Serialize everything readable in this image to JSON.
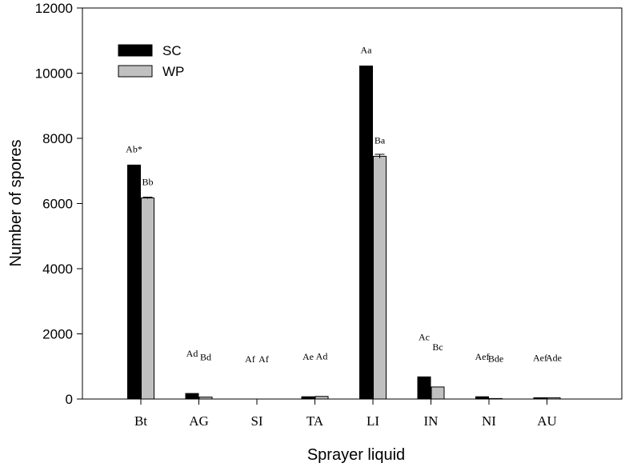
{
  "chart_data": {
    "type": "bar",
    "title": "",
    "xlabel": "Sprayer liquid",
    "ylabel": "Number of spores",
    "ylim": [
      0,
      12000
    ],
    "yticks": [
      0,
      2000,
      4000,
      6000,
      8000,
      10000,
      12000
    ],
    "categories": [
      "Bt",
      "AG",
      "SI",
      "TA",
      "LI",
      "IN",
      "NI",
      "AU"
    ],
    "grid": false,
    "legend_position": "top-left",
    "series": [
      {
        "name": "SC",
        "color": "#000000",
        "values": [
          7180,
          170,
          0,
          70,
          10220,
          680,
          70,
          40
        ],
        "errors": [
          0,
          0,
          0,
          0,
          0,
          0,
          0,
          0
        ],
        "labels": [
          "Ab*",
          "Ad",
          "Af",
          "Ae",
          "Aa",
          "Ac",
          "Aef",
          "Aef"
        ]
      },
      {
        "name": "WP",
        "color": "#c0c0c0",
        "values": [
          6170,
          60,
          0,
          80,
          7450,
          370,
          15,
          40
        ],
        "errors": [
          25,
          0,
          0,
          0,
          60,
          0,
          0,
          0
        ],
        "labels": [
          "Bb",
          "Bd",
          "Af",
          "Ad",
          "Ba",
          "Bc",
          "Bde",
          "Ade"
        ]
      }
    ]
  }
}
